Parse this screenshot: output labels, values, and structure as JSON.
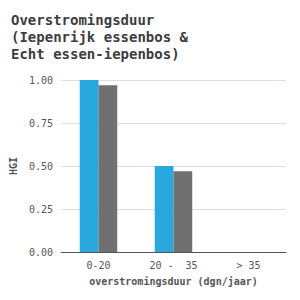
{
  "chart_data": {
    "type": "bar",
    "title": "Overstromingsduur\n(Iepenrijk essenbos &\nEcht essen-iepenbos)",
    "xlabel": "overstromingsduur (dgn/jaar)",
    "ylabel": "HGI",
    "categories": [
      "0-20",
      "20 -  35",
      "> 35"
    ],
    "series": [
      {
        "color": "#29a8e0",
        "values": [
          1.0,
          0.5,
          0.0
        ]
      },
      {
        "color": "#707070",
        "values": [
          0.97,
          0.47,
          0.0
        ]
      }
    ],
    "ylim": [
      0,
      1.0
    ],
    "yticks": [
      {
        "value": 0.0,
        "label": "0.00"
      },
      {
        "value": 0.25,
        "label": "0.25"
      },
      {
        "value": 0.5,
        "label": "0.50"
      },
      {
        "value": 0.75,
        "label": "0.75"
      },
      {
        "value": 1.0,
        "label": "1.00"
      }
    ],
    "grid": true
  }
}
